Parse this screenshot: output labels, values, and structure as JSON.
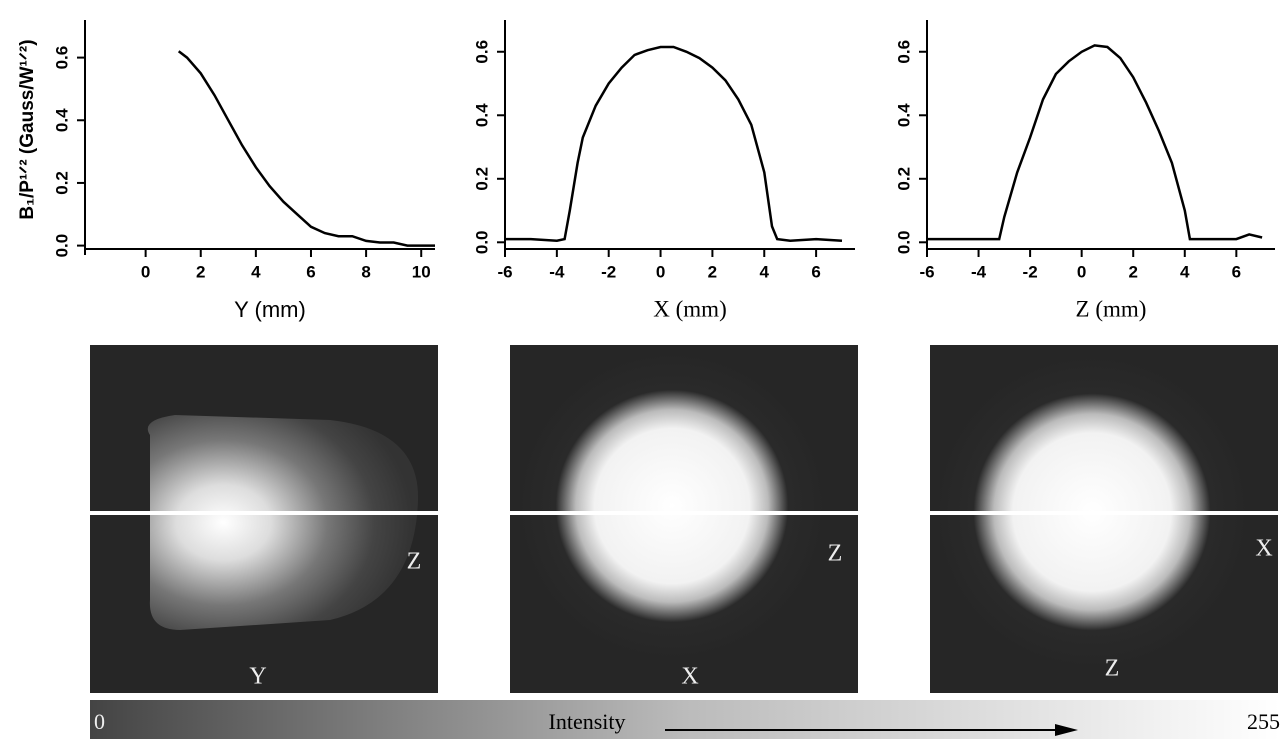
{
  "chart_data": [
    {
      "type": "line",
      "x_label": "Y (mm)",
      "y_label": "B₁/P¹ᐟ² (Gauss/W¹ᐟ²)",
      "xlim": [
        -2.2,
        10.5
      ],
      "xticks": [
        0,
        2,
        4,
        6,
        8,
        10
      ],
      "ylim": [
        -0.03,
        0.72
      ],
      "yticks": [
        {
          "value": 0,
          "label": "0.0"
        },
        0.2,
        0.4,
        0.6
      ],
      "x": [
        1.2,
        1.5,
        2,
        2.5,
        3,
        3.5,
        4,
        4.5,
        5,
        5.5,
        6,
        6.5,
        7,
        7.5,
        8,
        8.5,
        9,
        9.5,
        10,
        10.5
      ],
      "series": [
        {
          "color": "#000000",
          "values": [
            0.62,
            0.6,
            0.55,
            0.48,
            0.4,
            0.32,
            0.25,
            0.19,
            0.14,
            0.1,
            0.06,
            0.04,
            0.03,
            0.03,
            0.015,
            0.01,
            0.01,
            0.0,
            0.0,
            0.0
          ]
        }
      ]
    },
    {
      "type": "line",
      "x_label": "X (mm)",
      "xlim": [
        -6,
        7.5
      ],
      "xticks": [
        -6,
        -4,
        -2,
        0,
        2,
        4,
        6
      ],
      "ylim": [
        -0.04,
        0.7
      ],
      "yticks": [
        {
          "value": 0,
          "label": "0.0"
        },
        0.2,
        0.4,
        0.6
      ],
      "x": [
        -6,
        -5,
        -4,
        -3.7,
        -3.5,
        -3.2,
        -3,
        -2.5,
        -2,
        -1.5,
        -1,
        -0.5,
        0,
        0.5,
        1,
        1.5,
        2,
        2.5,
        3,
        3.5,
        4,
        4.3,
        4.5,
        5,
        6,
        7
      ],
      "series": [
        {
          "color": "#000000",
          "values": [
            0.01,
            0.01,
            0.005,
            0.01,
            0.1,
            0.25,
            0.33,
            0.43,
            0.5,
            0.55,
            0.59,
            0.605,
            0.615,
            0.615,
            0.6,
            0.58,
            0.55,
            0.51,
            0.45,
            0.37,
            0.22,
            0.05,
            0.01,
            0.005,
            0.01,
            0.005
          ]
        }
      ]
    },
    {
      "type": "line",
      "x_label": "Z (mm)",
      "xlim": [
        -6,
        7.5
      ],
      "xticks": [
        -6,
        -4,
        -2,
        0,
        2,
        4,
        6
      ],
      "ylim": [
        -0.04,
        0.7
      ],
      "yticks": [
        {
          "value": 0,
          "label": "0.0"
        },
        0.2,
        0.4,
        0.6
      ],
      "x": [
        -6,
        -3.2,
        -3,
        -2.5,
        -2,
        -1.5,
        -1,
        -0.5,
        0,
        0.5,
        1,
        1.5,
        2,
        2.5,
        3,
        3.5,
        4,
        4.2,
        5,
        6,
        6.5,
        7
      ],
      "series": [
        {
          "color": "#000000",
          "values": [
            0.01,
            0.01,
            0.08,
            0.22,
            0.33,
            0.45,
            0.53,
            0.57,
            0.6,
            0.62,
            0.615,
            0.58,
            0.52,
            0.44,
            0.35,
            0.25,
            0.1,
            0.01,
            0.01,
            0.01,
            0.025,
            0.015
          ]
        }
      ]
    }
  ],
  "images": [
    {
      "right_label": "Z",
      "bottom_label": "Y"
    },
    {
      "right_label": "Z",
      "bottom_label": "X"
    },
    {
      "right_label": "X",
      "bottom_label": "Z"
    }
  ],
  "colorbar": {
    "min_label": "0",
    "title": "Intensity",
    "max_label": "255"
  }
}
